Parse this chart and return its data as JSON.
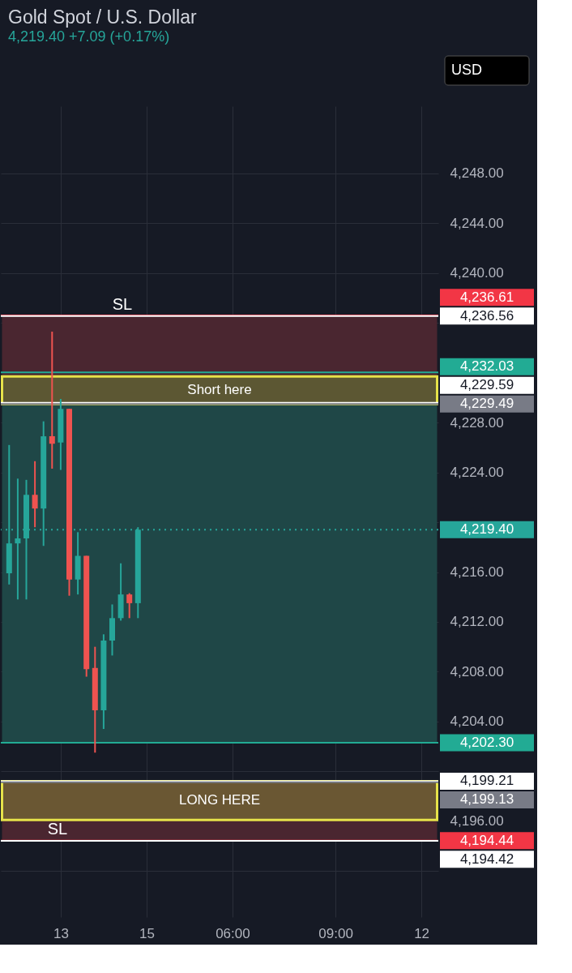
{
  "chart_data": {
    "type": "candlestick",
    "title": "Gold Spot / U.S. Dollar",
    "subtitle": "4,219.40 +7.09 (+0.17%)",
    "categories": [
      null,
      null,
      null,
      null,
      null,
      null,
      "13",
      null,
      null,
      null,
      null,
      null,
      null,
      null,
      null,
      null,
      "15",
      null,
      null,
      null,
      null,
      null,
      null,
      null,
      null,
      null,
      "06:00",
      null,
      null,
      null,
      null,
      null,
      null,
      null,
      null,
      null,
      null,
      null,
      "09:00",
      null,
      null,
      null,
      null,
      null,
      null,
      null,
      null,
      null,
      "12",
      null
    ],
    "ohlc": [
      [
        4215.9,
        4226.2,
        4215.0,
        4218.3
      ],
      [
        4218.3,
        4223.5,
        4213.8,
        4218.7
      ],
      [
        4218.7,
        4223.4,
        4213.8,
        4222.2
      ],
      [
        4222.2,
        4224.9,
        4219.6,
        4221.1
      ],
      [
        4221.1,
        4228.1,
        4218.1,
        4226.9
      ],
      [
        4226.9,
        4235.3,
        4224.3,
        4226.3
      ],
      [
        4226.4,
        4229.9,
        4224.2,
        4229.1
      ],
      [
        4229.1,
        4229.1,
        4214.1,
        4215.4
      ],
      [
        4215.4,
        4219.2,
        4214.2,
        4217.3
      ],
      [
        4217.3,
        4217.3,
        4207.6,
        4208.2
      ],
      [
        4208.3,
        4210.0,
        4201.5,
        4204.9
      ],
      [
        4204.9,
        4211.0,
        4203.4,
        4210.5
      ],
      [
        4210.5,
        4213.4,
        4209.3,
        4212.3
      ],
      [
        4212.3,
        4216.7,
        4212.1,
        4214.2
      ],
      [
        4214.2,
        4214.3,
        4212.3,
        4213.5
      ],
      [
        4213.5,
        4219.6,
        4212.3,
        4219.4
      ],
      null,
      null,
      null,
      null,
      null,
      null,
      null,
      null,
      null,
      null,
      null,
      null,
      null,
      null,
      null,
      null,
      null,
      null,
      null,
      null,
      null,
      null,
      null,
      null,
      null,
      null,
      null,
      null,
      null,
      null,
      null,
      null,
      null,
      null
    ],
    "ylim": [
      4188.3,
      4253.4
    ],
    "yticks": [
      {
        "value": 4192,
        "label": null
      },
      {
        "value": 4196,
        "label": "4,196.00"
      },
      {
        "value": 4200,
        "label": null
      },
      {
        "value": 4204,
        "label": "4,204.00"
      },
      {
        "value": 4208,
        "label": "4,208.00"
      },
      {
        "value": 4212,
        "label": "4,212.00"
      },
      {
        "value": 4216,
        "label": "4,216.00"
      },
      {
        "value": 4220,
        "label": null
      },
      {
        "value": 4224,
        "label": "4,224.00"
      },
      {
        "value": 4228,
        "label": "4,228.00"
      },
      {
        "value": 4232,
        "label": null
      },
      {
        "value": 4236,
        "label": null
      },
      {
        "value": 4240,
        "label": "4,240.00"
      },
      {
        "value": 4244,
        "label": "4,244.00"
      },
      {
        "value": 4248,
        "label": "4,248.00"
      }
    ],
    "grid": true,
    "bands": [
      {
        "axis": "y",
        "from": 4229.49,
        "to": 4236.61,
        "color": "#4a2630"
      },
      {
        "axis": "y",
        "from": 4202.3,
        "to": 4229.49,
        "color": "#1f4747"
      },
      {
        "axis": "y",
        "from": 4194.44,
        "to": 4199.13,
        "color": "#4a2630"
      },
      {
        "axis": "y",
        "from": 4229.49,
        "to": 4231.7,
        "label": "Short here",
        "color": "#5c5733"
      },
      {
        "axis": "y",
        "from": 4196.1,
        "to": 4199.21,
        "label": "LONG HERE",
        "color": "#6a5733"
      }
    ],
    "ref_lines": [
      {
        "axis": "y",
        "value": 4236.61,
        "label": "4,236.61",
        "color": "#f23645"
      },
      {
        "axis": "y",
        "value": 4236.56,
        "label": "4,236.56",
        "color": "#ffffff"
      },
      {
        "axis": "y",
        "value": 4232.03,
        "label": "4,232.03",
        "color": "#22ab94"
      },
      {
        "axis": "y",
        "value": 4229.59,
        "label": "4,229.59",
        "color": "#ffffff"
      },
      {
        "axis": "y",
        "value": 4229.49,
        "label": "4,229.49",
        "color": "#787b86"
      },
      {
        "axis": "y",
        "value": 4219.4,
        "label": "4,219.40",
        "color": "#26a69a",
        "line_style": "dotted"
      },
      {
        "axis": "y",
        "value": 4202.3,
        "label": "4,202.30",
        "color": "#22ab94"
      },
      {
        "axis": "y",
        "value": 4199.21,
        "label": "4,199.21",
        "color": "#ffffff"
      },
      {
        "axis": "y",
        "value": 4199.13,
        "label": "4,199.13",
        "color": "#787b86"
      },
      {
        "axis": "y",
        "value": 4194.44,
        "label": "4,194.44",
        "color": "#f23645"
      },
      {
        "axis": "y",
        "value": 4194.42,
        "label": "4,194.42",
        "color": "#ffffff"
      }
    ],
    "annotations": [
      "USD",
      {
        "text": "SL",
        "y": 4236.56
      },
      {
        "text": "SL",
        "y": 4194.42
      }
    ]
  }
}
